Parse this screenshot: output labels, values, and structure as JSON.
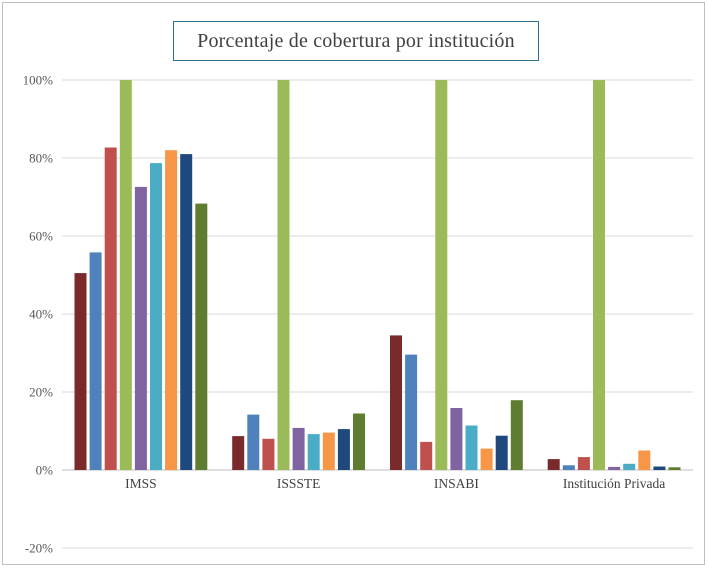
{
  "chart_data": {
    "type": "bar",
    "title": "Porcentaje de cobertura por institución",
    "categories": [
      "IMSS",
      "ISSSTE",
      "INSABI",
      "Institución Privada"
    ],
    "ylim": [
      -20,
      100
    ],
    "yticks": [
      -20,
      0,
      20,
      40,
      60,
      80,
      100
    ],
    "ytick_labels": [
      "-20%",
      "0%",
      "20%",
      "40%",
      "60%",
      "80%",
      "100%"
    ],
    "grid": true,
    "legend": "none",
    "series": [
      {
        "color": "#7b2a2b",
        "values": [
          50.5,
          8.7,
          34.5,
          2.8
        ]
      },
      {
        "color": "#4f81bd",
        "values": [
          55.8,
          14.2,
          29.6,
          1.2
        ]
      },
      {
        "color": "#c0504d",
        "values": [
          82.7,
          8.0,
          7.2,
          3.3
        ]
      },
      {
        "color": "#9bbb59",
        "values": [
          100,
          100,
          100,
          100
        ]
      },
      {
        "color": "#8064a2",
        "values": [
          72.6,
          10.8,
          15.9,
          0.8
        ]
      },
      {
        "color": "#4bacc6",
        "values": [
          78.7,
          9.2,
          11.4,
          1.6
        ]
      },
      {
        "color": "#f79646",
        "values": [
          82.0,
          9.6,
          5.5,
          5.0
        ]
      },
      {
        "color": "#1f497d",
        "values": [
          81.0,
          10.5,
          8.8,
          0.9
        ]
      },
      {
        "color": "#5e7d31",
        "values": [
          68.3,
          14.5,
          17.9,
          0.7
        ]
      }
    ]
  }
}
